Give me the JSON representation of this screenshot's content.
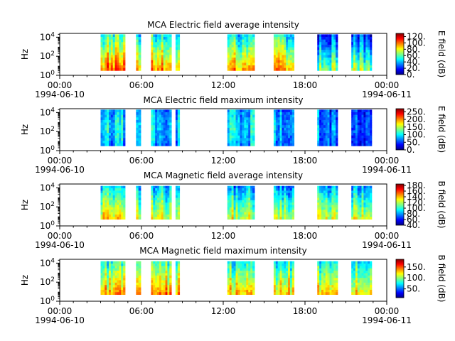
{
  "figure": {
    "colorscale": [
      "#00007f",
      "#0000ff",
      "#0080ff",
      "#00ffff",
      "#80ff80",
      "#ffff00",
      "#ff8000",
      "#ff0000",
      "#7f0000"
    ]
  },
  "chart_data": [
    {
      "type": "heatmap",
      "title": "MCA  Electric field average intensity",
      "ylabel": "Hz",
      "colorbar_label": "E field (dB)",
      "colorbar_ticks": [
        "0.",
        "20.",
        "40.",
        "60.",
        "80.",
        "100.",
        "120."
      ],
      "colorbar_tick_values": [
        0,
        20,
        40,
        60,
        80,
        100,
        120
      ],
      "clim": [
        0,
        130
      ],
      "xlim_hours": [
        0,
        24
      ],
      "xticks": [
        {
          "hour": 0,
          "time": "00:00",
          "date": "1994-06-10"
        },
        {
          "hour": 6,
          "time": "06:00",
          "date": ""
        },
        {
          "hour": 12,
          "time": "12:00",
          "date": ""
        },
        {
          "hour": 18,
          "time": "18:00",
          "date": ""
        },
        {
          "hour": 24,
          "time": "00:00",
          "date": "1994-06-11"
        }
      ],
      "yticks": [
        {
          "base": "10",
          "exp": "0"
        },
        {
          "base": "10",
          "exp": "2"
        },
        {
          "base": "10",
          "exp": "4"
        }
      ],
      "ylim_exp": [
        0,
        4.4
      ],
      "freq_exp_range": [
        0.5,
        4.3
      ],
      "segments": [
        {
          "start": 3.0,
          "end": 4.8,
          "value": 78
        },
        {
          "start": 5.6,
          "end": 5.95,
          "value": 72
        },
        {
          "start": 6.7,
          "end": 8.2,
          "value": 75
        },
        {
          "start": 8.5,
          "end": 8.8,
          "value": 70
        },
        {
          "start": 12.3,
          "end": 14.3,
          "value": 70
        },
        {
          "start": 15.7,
          "end": 17.2,
          "value": 72
        },
        {
          "start": 18.9,
          "end": 20.4,
          "value": 45
        },
        {
          "start": 21.4,
          "end": 22.9,
          "value": 45
        }
      ]
    },
    {
      "type": "heatmap",
      "title": "MCA  Electric field maximum intensity",
      "ylabel": "Hz",
      "colorbar_label": "E field (dB)",
      "colorbar_ticks": [
        "0.",
        "50.",
        "100.",
        "150.",
        "200.",
        "250."
      ],
      "colorbar_tick_values": [
        0,
        50,
        100,
        150,
        200,
        250
      ],
      "clim": [
        0,
        270
      ],
      "xlim_hours": [
        0,
        24
      ],
      "xticks": [
        {
          "hour": 0,
          "time": "00:00",
          "date": "1994-06-10"
        },
        {
          "hour": 6,
          "time": "06:00",
          "date": ""
        },
        {
          "hour": 12,
          "time": "12:00",
          "date": ""
        },
        {
          "hour": 18,
          "time": "18:00",
          "date": ""
        },
        {
          "hour": 24,
          "time": "00:00",
          "date": "1994-06-11"
        }
      ],
      "yticks": [
        {
          "base": "10",
          "exp": "0"
        },
        {
          "base": "10",
          "exp": "2"
        },
        {
          "base": "10",
          "exp": "4"
        }
      ],
      "ylim_exp": [
        0,
        4.4
      ],
      "freq_exp_range": [
        0.5,
        4.3
      ],
      "segments": [
        {
          "start": 3.0,
          "end": 4.8,
          "value": 85
        },
        {
          "start": 5.6,
          "end": 5.95,
          "value": 80
        },
        {
          "start": 6.7,
          "end": 8.2,
          "value": 85
        },
        {
          "start": 8.5,
          "end": 8.8,
          "value": 80
        },
        {
          "start": 12.3,
          "end": 14.3,
          "value": 85
        },
        {
          "start": 15.7,
          "end": 17.2,
          "value": 85
        },
        {
          "start": 18.9,
          "end": 20.4,
          "value": 60
        },
        {
          "start": 21.4,
          "end": 22.9,
          "value": 60
        }
      ]
    },
    {
      "type": "heatmap",
      "title": "MCA  Magnetic field average intensity",
      "ylabel": "Hz",
      "colorbar_label": "B field (dB)",
      "colorbar_ticks": [
        "40.",
        "60.",
        "80.",
        "100.",
        "120.",
        "140.",
        "160.",
        "180."
      ],
      "colorbar_tick_values": [
        40,
        60,
        80,
        100,
        120,
        140,
        160,
        180
      ],
      "clim": [
        40,
        185
      ],
      "xlim_hours": [
        0,
        24
      ],
      "xticks": [
        {
          "hour": 0,
          "time": "00:00",
          "date": "1994-06-10"
        },
        {
          "hour": 6,
          "time": "06:00",
          "date": ""
        },
        {
          "hour": 12,
          "time": "12:00",
          "date": ""
        },
        {
          "hour": 18,
          "time": "18:00",
          "date": ""
        },
        {
          "hour": 24,
          "time": "00:00",
          "date": "1994-06-11"
        }
      ],
      "yticks": [
        {
          "base": "10",
          "exp": "0"
        },
        {
          "base": "10",
          "exp": "2"
        },
        {
          "base": "10",
          "exp": "4"
        }
      ],
      "ylim_exp": [
        0,
        4.4
      ],
      "freq_exp_range": [
        0.7,
        4.2
      ],
      "segments": [
        {
          "start": 3.0,
          "end": 4.8,
          "value": 105
        },
        {
          "start": 5.6,
          "end": 5.95,
          "value": 110
        },
        {
          "start": 6.7,
          "end": 8.2,
          "value": 105
        },
        {
          "start": 8.5,
          "end": 8.8,
          "value": 110
        },
        {
          "start": 12.3,
          "end": 14.3,
          "value": 100
        },
        {
          "start": 15.7,
          "end": 17.2,
          "value": 100
        },
        {
          "start": 18.9,
          "end": 20.4,
          "value": 100
        },
        {
          "start": 21.4,
          "end": 22.9,
          "value": 100
        }
      ]
    },
    {
      "type": "heatmap",
      "title": "MCA  Magnetic field maximum intensity",
      "ylabel": "Hz",
      "colorbar_label": "B field (dB)",
      "colorbar_ticks": [
        "50.",
        "100.",
        "150."
      ],
      "colorbar_tick_values": [
        50,
        100,
        150
      ],
      "clim": [
        10,
        185
      ],
      "xlim_hours": [
        0,
        24
      ],
      "xticks": [
        {
          "hour": 0,
          "time": "00:00",
          "date": "1994-06-10"
        },
        {
          "hour": 6,
          "time": "06:00",
          "date": ""
        },
        {
          "hour": 12,
          "time": "12:00",
          "date": ""
        },
        {
          "hour": 18,
          "time": "18:00",
          "date": ""
        },
        {
          "hour": 24,
          "time": "00:00",
          "date": "1994-06-11"
        }
      ],
      "yticks": [
        {
          "base": "10",
          "exp": "0"
        },
        {
          "base": "10",
          "exp": "2"
        },
        {
          "base": "10",
          "exp": "4"
        }
      ],
      "ylim_exp": [
        0,
        4.4
      ],
      "freq_exp_range": [
        0.7,
        4.2
      ],
      "segments": [
        {
          "start": 3.0,
          "end": 4.8,
          "value": 105
        },
        {
          "start": 5.6,
          "end": 5.95,
          "value": 110
        },
        {
          "start": 6.7,
          "end": 8.2,
          "value": 105
        },
        {
          "start": 8.5,
          "end": 8.8,
          "value": 110
        },
        {
          "start": 12.3,
          "end": 14.3,
          "value": 100
        },
        {
          "start": 15.7,
          "end": 17.2,
          "value": 100
        },
        {
          "start": 18.9,
          "end": 20.4,
          "value": 95
        },
        {
          "start": 21.4,
          "end": 22.9,
          "value": 95
        }
      ]
    }
  ]
}
